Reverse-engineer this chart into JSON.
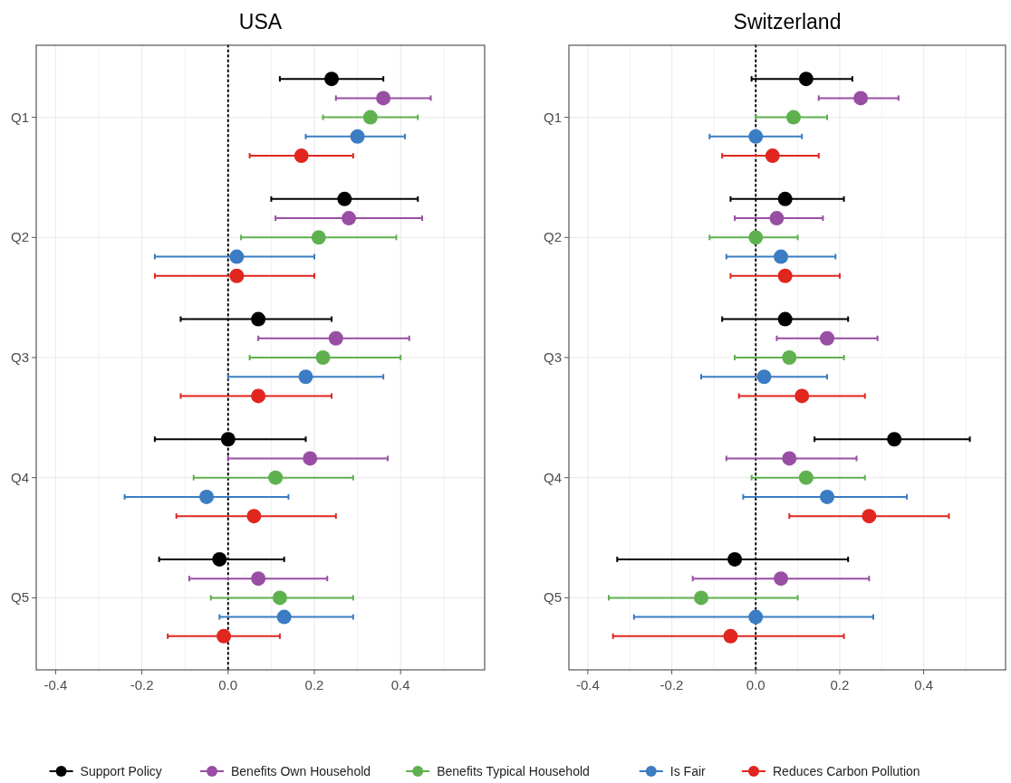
{
  "chart_data": [
    {
      "type": "scatter",
      "orientation": "horizontal",
      "title": "USA",
      "categories": [
        "Q1",
        "Q2",
        "Q3",
        "Q4",
        "Q5"
      ],
      "xlim": [
        -0.445,
        0.595
      ],
      "xticks": [
        {
          "value": -0.4,
          "label": "-0.4"
        },
        {
          "value": -0.3,
          "label": null
        },
        {
          "value": -0.2,
          "label": "-0.2"
        },
        {
          "value": -0.1,
          "label": null
        },
        {
          "value": 0,
          "label": "0.0"
        },
        {
          "value": 0.1,
          "label": null
        },
        {
          "value": 0.2,
          "label": "0.2"
        },
        {
          "value": 0.3,
          "label": null
        },
        {
          "value": 0.4,
          "label": "0.4"
        },
        {
          "value": 0.5,
          "label": null
        }
      ],
      "grid": true,
      "marker": "circle",
      "legend": "bottom",
      "ref_lines": [
        {
          "axis": "x",
          "value": 0,
          "line_style": "dotted",
          "color": "#000000"
        }
      ],
      "series": [
        {
          "name": "Support Policy",
          "color": "#000000",
          "values": [
            0.24,
            0.27,
            0.07,
            0.0,
            -0.02
          ],
          "errors": [
            [
              0.12,
              0.36
            ],
            [
              0.1,
              0.44
            ],
            [
              -0.11,
              0.24
            ],
            [
              -0.17,
              0.18
            ],
            [
              -0.16,
              0.13
            ]
          ]
        },
        {
          "name": "Benefits Own Household",
          "color": "#984ea3",
          "values": [
            0.36,
            0.28,
            0.25,
            0.19,
            0.07
          ],
          "errors": [
            [
              0.25,
              0.47
            ],
            [
              0.11,
              0.45
            ],
            [
              0.07,
              0.42
            ],
            [
              0.0,
              0.37
            ],
            [
              -0.09,
              0.23
            ]
          ]
        },
        {
          "name": "Benefits Typical Household",
          "color": "#5fb14f",
          "values": [
            0.33,
            0.21,
            0.22,
            0.11,
            0.12
          ],
          "errors": [
            [
              0.22,
              0.44
            ],
            [
              0.03,
              0.39
            ],
            [
              0.05,
              0.4
            ],
            [
              -0.08,
              0.29
            ],
            [
              -0.04,
              0.29
            ]
          ]
        },
        {
          "name": "Is Fair",
          "color": "#3b7cc2",
          "values": [
            0.3,
            0.02,
            0.18,
            -0.05,
            0.13
          ],
          "errors": [
            [
              0.18,
              0.41
            ],
            [
              -0.17,
              0.2
            ],
            [
              0.0,
              0.36
            ],
            [
              -0.24,
              0.14
            ],
            [
              -0.02,
              0.29
            ]
          ]
        },
        {
          "name": "Reduces Carbon Pollution",
          "color": "#e0261f",
          "values": [
            0.17,
            0.02,
            0.07,
            0.06,
            -0.01
          ],
          "errors": [
            [
              0.05,
              0.29
            ],
            [
              -0.17,
              0.2
            ],
            [
              -0.11,
              0.24
            ],
            [
              -0.12,
              0.25
            ],
            [
              -0.14,
              0.12
            ]
          ]
        }
      ]
    },
    {
      "type": "scatter",
      "orientation": "horizontal",
      "title": "Switzerland",
      "categories": [
        "Q1",
        "Q2",
        "Q3",
        "Q4",
        "Q5"
      ],
      "xlim": [
        -0.445,
        0.595
      ],
      "xticks": [
        {
          "value": -0.4,
          "label": "-0.4"
        },
        {
          "value": -0.3,
          "label": null
        },
        {
          "value": -0.2,
          "label": "-0.2"
        },
        {
          "value": -0.1,
          "label": null
        },
        {
          "value": 0,
          "label": "0.0"
        },
        {
          "value": 0.1,
          "label": null
        },
        {
          "value": 0.2,
          "label": "0.2"
        },
        {
          "value": 0.3,
          "label": null
        },
        {
          "value": 0.4,
          "label": "0.4"
        },
        {
          "value": 0.5,
          "label": null
        }
      ],
      "grid": true,
      "marker": "circle",
      "ref_lines": [
        {
          "axis": "x",
          "value": 0,
          "line_style": "dotted",
          "color": "#000000"
        }
      ],
      "series": [
        {
          "color": "#000000",
          "values": [
            0.12,
            0.07,
            0.07,
            0.33,
            -0.05
          ],
          "errors": [
            [
              -0.01,
              0.23
            ],
            [
              -0.06,
              0.21
            ],
            [
              -0.08,
              0.22
            ],
            [
              0.14,
              0.51
            ],
            [
              -0.33,
              0.22
            ]
          ]
        },
        {
          "color": "#984ea3",
          "values": [
            0.25,
            0.05,
            0.17,
            0.08,
            0.06
          ],
          "errors": [
            [
              0.15,
              0.34
            ],
            [
              -0.05,
              0.16
            ],
            [
              0.05,
              0.29
            ],
            [
              -0.07,
              0.24
            ],
            [
              -0.15,
              0.27
            ]
          ]
        },
        {
          "color": "#5fb14f",
          "values": [
            0.09,
            0.0,
            0.08,
            0.12,
            -0.13
          ],
          "errors": [
            [
              0.0,
              0.17
            ],
            [
              -0.11,
              0.1
            ],
            [
              -0.05,
              0.21
            ],
            [
              -0.01,
              0.26
            ],
            [
              -0.35,
              0.1
            ]
          ]
        },
        {
          "color": "#3b7cc2",
          "values": [
            0.0,
            0.06,
            0.02,
            0.17,
            0.0
          ],
          "errors": [
            [
              -0.11,
              0.11
            ],
            [
              -0.07,
              0.19
            ],
            [
              -0.13,
              0.17
            ],
            [
              -0.03,
              0.36
            ],
            [
              -0.29,
              0.28
            ]
          ]
        },
        {
          "color": "#e0261f",
          "values": [
            0.04,
            0.07,
            0.11,
            0.27,
            -0.06
          ],
          "errors": [
            [
              -0.08,
              0.15
            ],
            [
              -0.06,
              0.2
            ],
            [
              -0.04,
              0.26
            ],
            [
              0.08,
              0.46
            ],
            [
              -0.34,
              0.21
            ]
          ]
        }
      ]
    }
  ]
}
